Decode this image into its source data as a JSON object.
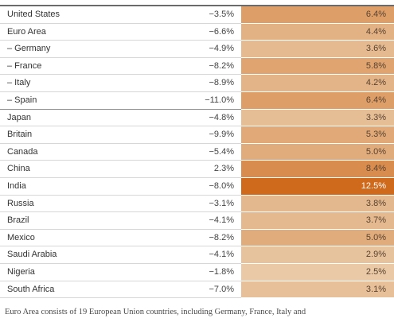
{
  "chart_data": {
    "type": "table",
    "columns": [],
    "rows": [
      {
        "name": "United States",
        "g2020": "−3.5%",
        "g2021": "6.4%",
        "value": 6.4
      },
      {
        "name": "Euro Area",
        "g2020": "−6.6%",
        "g2021": "4.4%",
        "value": 4.4
      },
      {
        "name": "– Germany",
        "g2020": "−4.9%",
        "g2021": "3.6%",
        "value": 3.6
      },
      {
        "name": "– France",
        "g2020": "−8.2%",
        "g2021": "5.8%",
        "value": 5.8
      },
      {
        "name": "– Italy",
        "g2020": "−8.9%",
        "g2021": "4.2%",
        "value": 4.2
      },
      {
        "name": "– Spain",
        "g2020": "−11.0%",
        "g2021": "6.4%",
        "value": 6.4
      },
      {
        "name": "Japan",
        "g2020": "−4.8%",
        "g2021": "3.3%",
        "value": 3.3
      },
      {
        "name": "Britain",
        "g2020": "−9.9%",
        "g2021": "5.3%",
        "value": 5.3
      },
      {
        "name": "Canada",
        "g2020": "−5.4%",
        "g2021": "5.0%",
        "value": 5.0
      },
      {
        "name": "China",
        "g2020": "2.3%",
        "g2021": "8.4%",
        "value": 8.4
      },
      {
        "name": "India",
        "g2020": "−8.0%",
        "g2021": "12.5%",
        "value": 12.5
      },
      {
        "name": "Russia",
        "g2020": "−3.1%",
        "g2021": "3.8%",
        "value": 3.8
      },
      {
        "name": "Brazil",
        "g2020": "−4.1%",
        "g2021": "3.7%",
        "value": 3.7
      },
      {
        "name": "Mexico",
        "g2020": "−8.2%",
        "g2021": "5.0%",
        "value": 5.0
      },
      {
        "name": "Saudi Arabia",
        "g2020": "−4.1%",
        "g2021": "2.9%",
        "value": 2.9
      },
      {
        "name": "Nigeria",
        "g2020": "−1.8%",
        "g2021": "2.5%",
        "value": 2.5
      },
      {
        "name": "South Africa",
        "g2020": "−7.0%",
        "g2021": "3.1%",
        "value": 3.1
      }
    ],
    "group_ends": [
      5,
      17
    ],
    "color_scale": {
      "min": 2.5,
      "max": 12.5,
      "low_color": "#e9c9a6",
      "high_color": "#cf6a1c",
      "light_text": "#5a4330",
      "dark_text": "#ffffff"
    },
    "note": "Euro Area consists of 19 European Union countries, including Germany, France, Italy and"
  }
}
